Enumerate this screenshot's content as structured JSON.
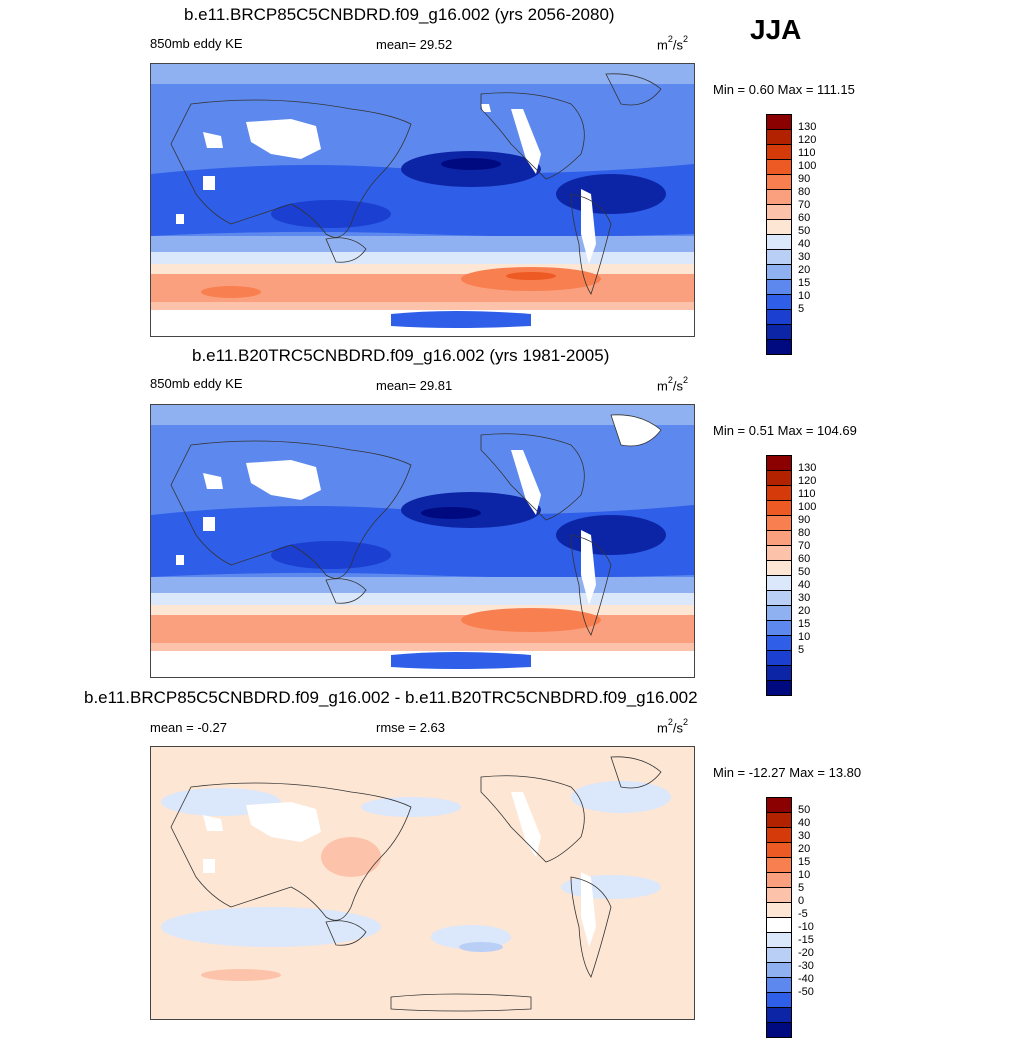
{
  "season": "JJA",
  "panels": [
    {
      "title": "b.e11.BRCP85C5CNBDRD.f09_g16.002 (yrs 2056-2080)",
      "left_label": "850mb eddy KE",
      "center_label": "mean=  29.52",
      "units": "m",
      "units_exp1": "2",
      "units_mid": "/s",
      "units_exp2": "2",
      "minmax": "Min =   0.60 Max = 111.15"
    },
    {
      "title": "b.e11.B20TRC5CNBDRD.f09_g16.002 (yrs 1981-2005)",
      "left_label": "850mb eddy KE",
      "center_label": "mean=  29.81",
      "units": "m",
      "units_exp1": "2",
      "units_mid": "/s",
      "units_exp2": "2",
      "minmax": "Min =   0.51 Max = 104.69"
    },
    {
      "title": "b.e11.BRCP85C5CNBDRD.f09_g16.002 - b.e11.B20TRC5CNBDRD.f09_g16.002",
      "left_label": "mean =  -0.27",
      "center_label": "rmse =   2.63",
      "units": "m",
      "units_exp1": "2",
      "units_mid": "/s",
      "units_exp2": "2",
      "minmax": "Min = -12.27 Max =  13.80"
    }
  ],
  "colorbar_abs": {
    "labels": [
      "130",
      "120",
      "110",
      "100",
      "90",
      "80",
      "70",
      "60",
      "50",
      "40",
      "30",
      "20",
      "15",
      "10",
      "5"
    ],
    "colors": [
      "#8b0000",
      "#b22200",
      "#d43a0a",
      "#ee5a24",
      "#f87f4f",
      "#fba07e",
      "#fdc3aa",
      "#fde6d4",
      "#dbe7fb",
      "#b9cff6",
      "#8fb1f2",
      "#5d89ee",
      "#2f5ee8",
      "#1a3fd1",
      "#0c25a6",
      "#000a80"
    ]
  },
  "colorbar_diff": {
    "labels": [
      "50",
      "40",
      "30",
      "20",
      "15",
      "10",
      "5",
      "0",
      "-5",
      "-10",
      "-15",
      "-20",
      "-30",
      "-40",
      "-50"
    ],
    "colors": [
      "#8b0000",
      "#b22200",
      "#d43a0a",
      "#ee5a24",
      "#f87f4f",
      "#fba07e",
      "#fdc3aa",
      "#fde6d4",
      "#ffffff",
      "#dbe7fb",
      "#b9cff6",
      "#8fb1f2",
      "#5d89ee",
      "#2f5ee8",
      "#0c25a6",
      "#000a80"
    ]
  }
}
